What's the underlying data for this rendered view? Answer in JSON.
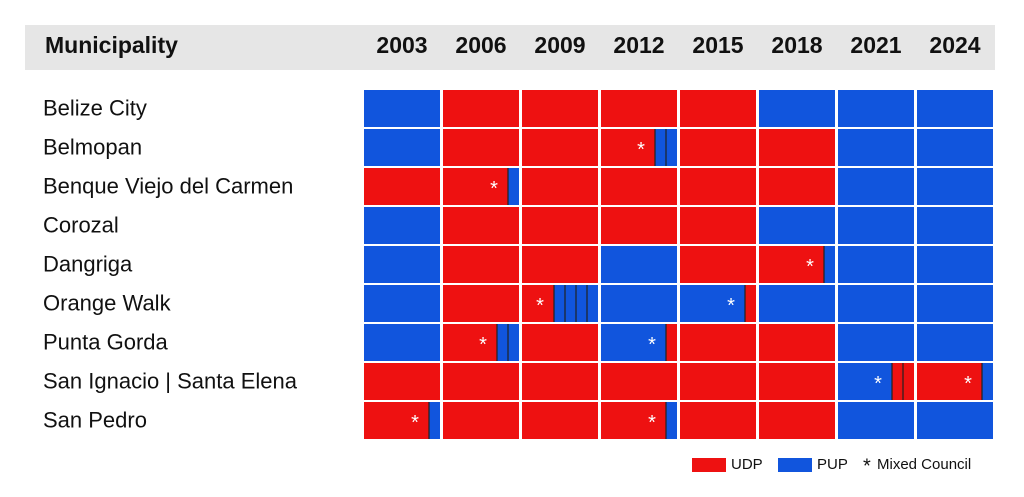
{
  "header": {
    "title": "Municipality",
    "years": [
      "2003",
      "2006",
      "2009",
      "2012",
      "2015",
      "2018",
      "2021",
      "2024"
    ]
  },
  "rows": [
    {
      "name": "Belize City",
      "cells": [
        {
          "party": "PUP"
        },
        {
          "party": "UDP"
        },
        {
          "party": "UDP"
        },
        {
          "party": "UDP"
        },
        {
          "party": "UDP"
        },
        {
          "party": "PUP"
        },
        {
          "party": "PUP"
        },
        {
          "party": "PUP"
        }
      ]
    },
    {
      "name": "Belmopan",
      "cells": [
        {
          "party": "PUP"
        },
        {
          "party": "UDP"
        },
        {
          "party": "UDP"
        },
        {
          "party": "UDP",
          "minority": 2
        },
        {
          "party": "UDP"
        },
        {
          "party": "UDP"
        },
        {
          "party": "PUP"
        },
        {
          "party": "PUP"
        }
      ]
    },
    {
      "name": "Benque Viejo del Carmen",
      "cells": [
        {
          "party": "UDP"
        },
        {
          "party": "UDP",
          "minority": 1
        },
        {
          "party": "UDP"
        },
        {
          "party": "UDP"
        },
        {
          "party": "UDP"
        },
        {
          "party": "UDP"
        },
        {
          "party": "PUP"
        },
        {
          "party": "PUP"
        }
      ]
    },
    {
      "name": "Corozal",
      "cells": [
        {
          "party": "PUP"
        },
        {
          "party": "UDP"
        },
        {
          "party": "UDP"
        },
        {
          "party": "UDP"
        },
        {
          "party": "UDP"
        },
        {
          "party": "PUP"
        },
        {
          "party": "PUP"
        },
        {
          "party": "PUP"
        }
      ]
    },
    {
      "name": "Dangriga",
      "cells": [
        {
          "party": "PUP"
        },
        {
          "party": "UDP"
        },
        {
          "party": "UDP"
        },
        {
          "party": "PUP"
        },
        {
          "party": "UDP"
        },
        {
          "party": "UDP",
          "minority": 1
        },
        {
          "party": "PUP"
        },
        {
          "party": "PUP"
        }
      ]
    },
    {
      "name": "Orange Walk",
      "cells": [
        {
          "party": "PUP"
        },
        {
          "party": "UDP"
        },
        {
          "party": "UDP",
          "minority": 4
        },
        {
          "party": "PUP"
        },
        {
          "party": "PUP",
          "minority": 1
        },
        {
          "party": "PUP"
        },
        {
          "party": "PUP"
        },
        {
          "party": "PUP"
        }
      ]
    },
    {
      "name": "Punta Gorda",
      "cells": [
        {
          "party": "PUP"
        },
        {
          "party": "UDP",
          "minority": 2
        },
        {
          "party": "UDP"
        },
        {
          "party": "PUP",
          "minority": 1
        },
        {
          "party": "UDP"
        },
        {
          "party": "UDP"
        },
        {
          "party": "PUP"
        },
        {
          "party": "PUP"
        }
      ]
    },
    {
      "name": "San Ignacio | Santa Elena",
      "cells": [
        {
          "party": "UDP"
        },
        {
          "party": "UDP"
        },
        {
          "party": "UDP"
        },
        {
          "party": "UDP"
        },
        {
          "party": "UDP"
        },
        {
          "party": "UDP"
        },
        {
          "party": "PUP",
          "minority": 2
        },
        {
          "party": "UDP",
          "minority": 1
        }
      ]
    },
    {
      "name": "San Pedro",
      "cells": [
        {
          "party": "UDP",
          "minority": 1
        },
        {
          "party": "UDP"
        },
        {
          "party": "UDP"
        },
        {
          "party": "UDP",
          "minority": 1
        },
        {
          "party": "UDP"
        },
        {
          "party": "UDP"
        },
        {
          "party": "PUP"
        },
        {
          "party": "PUP"
        }
      ]
    }
  ],
  "legend": [
    {
      "label": "UDP",
      "color": "#ee1111"
    },
    {
      "label": "PUP",
      "color": "#1155dd"
    }
  ],
  "mixed": {
    "symbol": "*",
    "label": "Mixed Council"
  }
}
